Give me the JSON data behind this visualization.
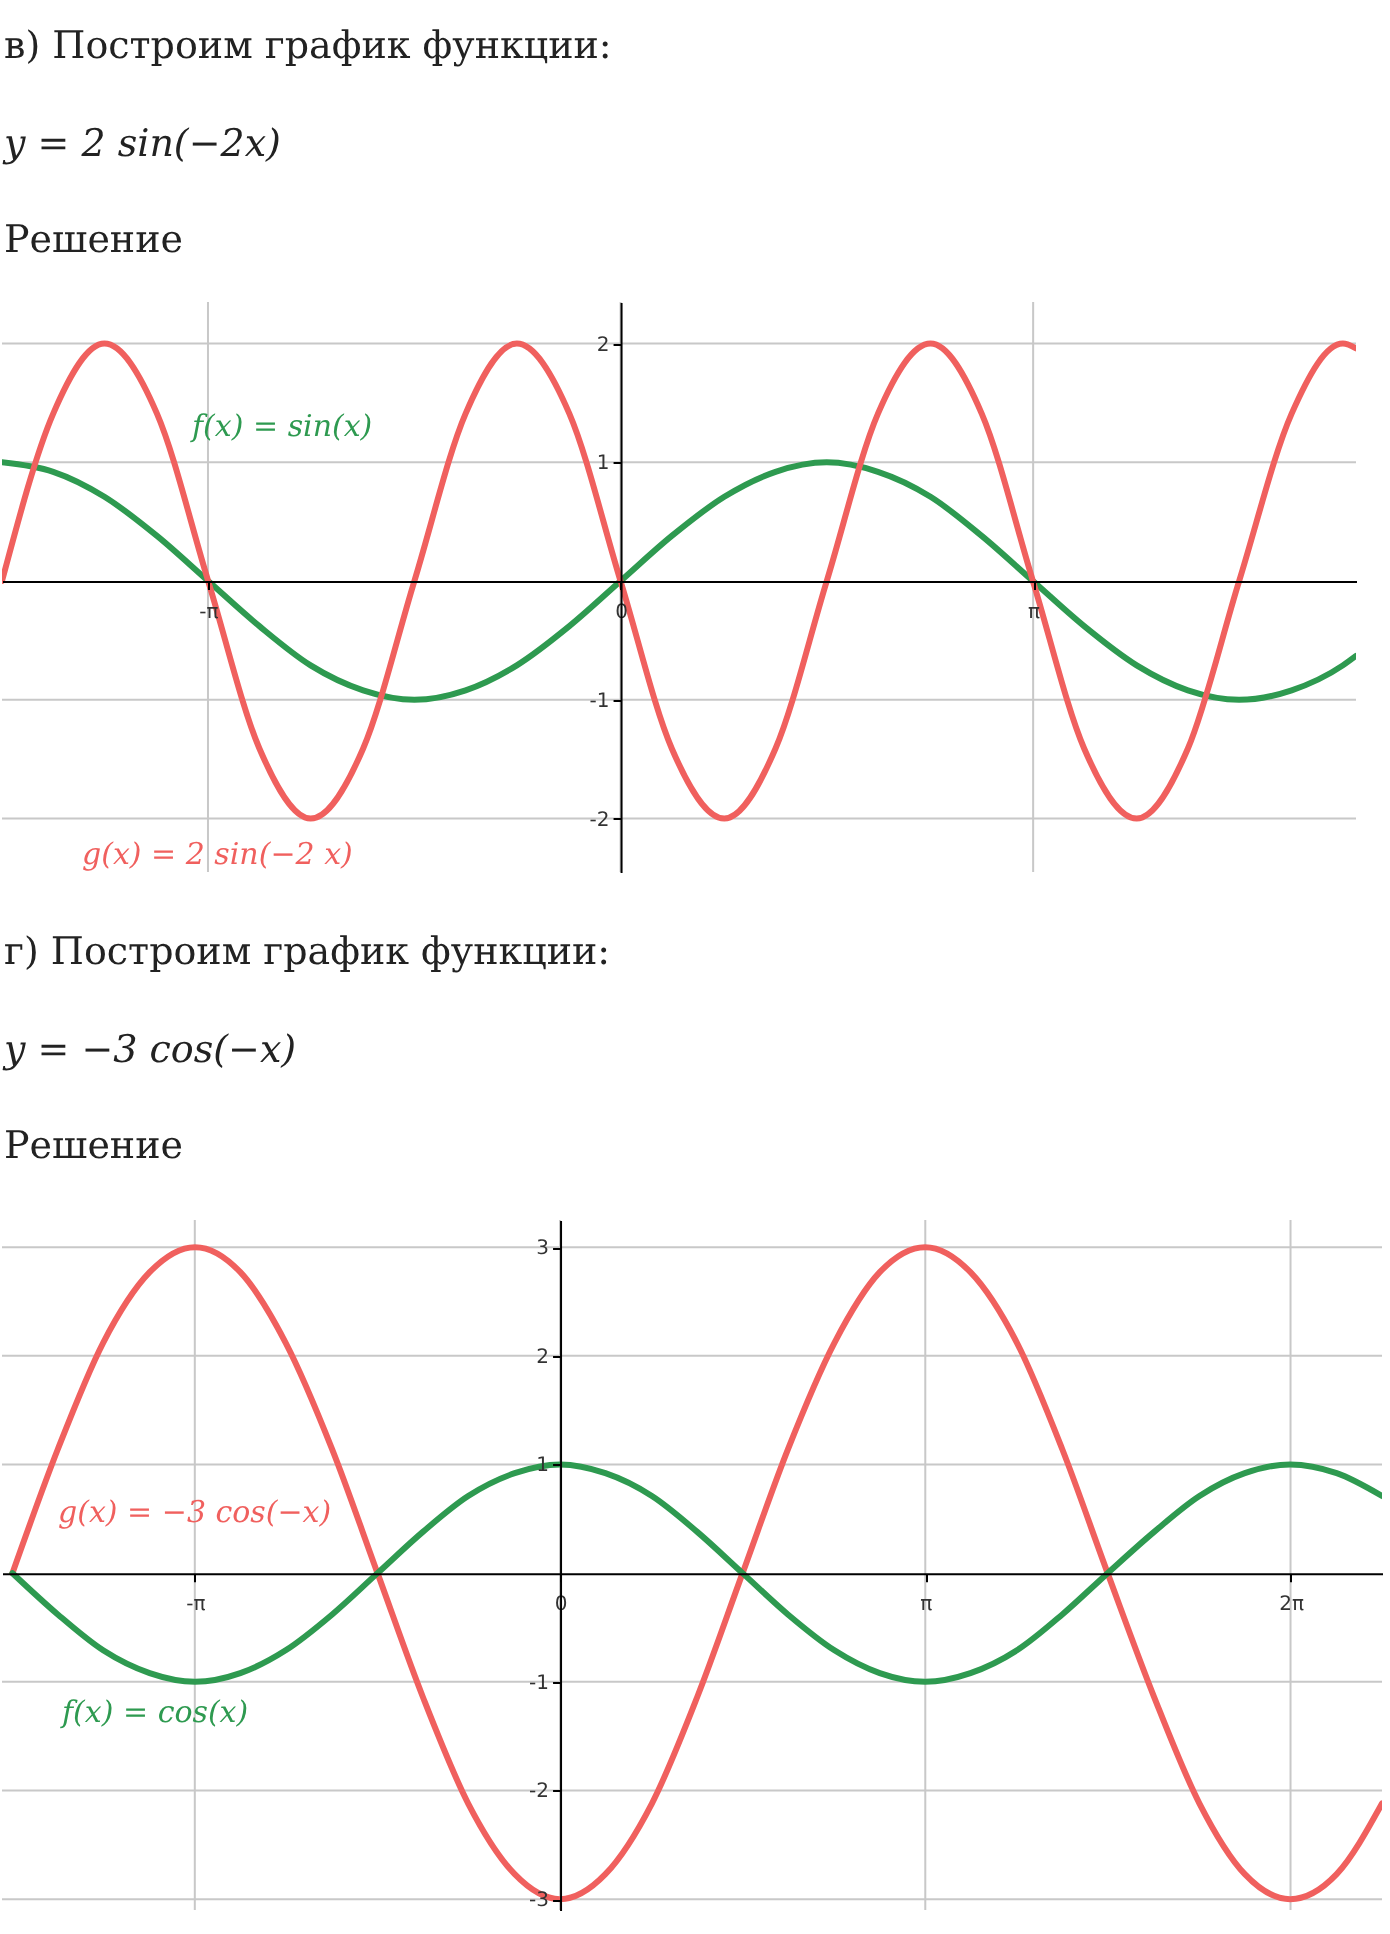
{
  "chart_data": [
    {
      "type": "line",
      "title": "в) Построим график функции:",
      "subtitle": "y = 2 sin(−2x)",
      "annotations": [
        "Решение"
      ],
      "x": [
        -4.71,
        -4.32,
        -3.93,
        -3.53,
        -3.14,
        -2.75,
        -2.36,
        -1.96,
        -1.57,
        -1.18,
        -0.79,
        -0.39,
        0,
        0.39,
        0.79,
        1.18,
        1.57,
        1.96,
        2.36,
        2.75,
        3.14,
        3.53,
        3.93,
        4.32,
        4.71,
        5.11,
        5.5,
        5.6
      ],
      "series": [
        {
          "name": "f(x) = sin(x)",
          "color": "#2e9a50",
          "values": [
            1,
            0.92,
            0.71,
            0.38,
            0,
            -0.38,
            -0.71,
            -0.92,
            -1,
            -0.92,
            -0.71,
            -0.38,
            0,
            0.38,
            0.71,
            0.92,
            1,
            0.92,
            0.71,
            0.38,
            0,
            -0.38,
            -0.71,
            -0.92,
            -1,
            -0.92,
            -0.71,
            -0.63
          ]
        },
        {
          "name": "g(x) = 2 sin(−2 x)",
          "color": "#f0605e",
          "values": [
            0,
            1.41,
            2,
            1.41,
            0,
            -1.41,
            -2,
            -1.41,
            0,
            1.41,
            2,
            1.41,
            0,
            -1.41,
            -2,
            -1.41,
            0,
            1.41,
            2,
            1.41,
            0,
            -1.41,
            -2,
            -1.41,
            0,
            1.41,
            2,
            1.96
          ]
        }
      ],
      "xlim": [
        -4.71,
        5.6
      ],
      "ylim": [
        -2.45,
        2.35
      ],
      "xticks": [
        {
          "value": -3.1416,
          "label": "-π"
        },
        {
          "value": 0,
          "label": "0"
        },
        {
          "value": 3.1416,
          "label": "π"
        }
      ],
      "yticks": [
        -2,
        -1,
        1,
        2
      ],
      "grid": true,
      "marker": "none",
      "line_style": "solid"
    },
    {
      "type": "line",
      "title": "г) Построим график функции:",
      "subtitle": "y = −3 cos(−x)",
      "annotations": [
        "Решение"
      ],
      "x": [
        -4.71,
        -4.32,
        -3.93,
        -3.53,
        -3.14,
        -2.75,
        -2.36,
        -1.96,
        -1.57,
        -1.18,
        -0.79,
        -0.39,
        0,
        0.39,
        0.79,
        1.18,
        1.57,
        1.96,
        2.36,
        2.75,
        3.14,
        3.53,
        3.93,
        4.32,
        4.71,
        5.11,
        5.5,
        5.89,
        6.28,
        6.68,
        7.07
      ],
      "series": [
        {
          "name": "g(x) = −3 cos(−x)",
          "color": "#f0605e",
          "values": [
            0,
            1.14,
            2.12,
            2.77,
            3,
            2.77,
            2.12,
            1.14,
            0,
            -1.14,
            -2.12,
            -2.77,
            -3,
            -2.77,
            -2.12,
            -1.14,
            0,
            1.14,
            2.12,
            2.77,
            3,
            2.77,
            2.12,
            1.14,
            0,
            -1.14,
            -2.12,
            -2.77,
            -3,
            -2.77,
            -2.12
          ]
        },
        {
          "name": "f(x) = cos(x)",
          "color": "#2e9a50",
          "values": [
            0,
            -0.38,
            -0.71,
            -0.92,
            -1,
            -0.92,
            -0.71,
            -0.38,
            0,
            0.38,
            0.71,
            0.92,
            1,
            0.92,
            0.71,
            0.38,
            0,
            -0.38,
            -0.71,
            -0.92,
            -1,
            -0.92,
            -0.71,
            -0.38,
            0,
            0.38,
            0.71,
            0.92,
            1,
            0.92,
            0.71
          ]
        }
      ],
      "xlim": [
        -4.8,
        7.07
      ],
      "ylim": [
        -3.1,
        3.25
      ],
      "xticks": [
        {
          "value": -3.1416,
          "label": "-π"
        },
        {
          "value": 0,
          "label": "0"
        },
        {
          "value": 3.1416,
          "label": "π"
        },
        {
          "value": 6.2832,
          "label": "2π"
        }
      ],
      "yticks": [
        -3,
        -2,
        -1,
        1,
        2,
        3
      ],
      "grid": true,
      "marker": "none",
      "line_style": "solid"
    }
  ]
}
